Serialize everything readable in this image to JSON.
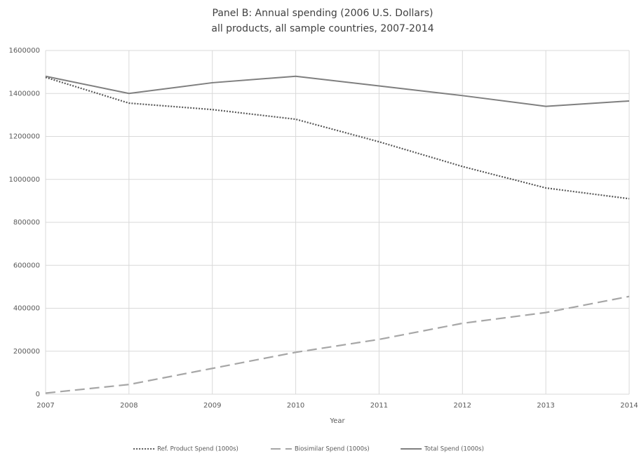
{
  "chart_data": {
    "type": "line",
    "title": "Panel B: Annual spending (2006 U.S. Dollars)",
    "subtitle": "all products, all sample countries, 2007-2014",
    "x_label": "Year",
    "x": [
      2007,
      2008,
      2009,
      2010,
      2011,
      2012,
      2013,
      2014
    ],
    "xlim": [
      2007,
      2014
    ],
    "xticks": [
      2007,
      2008,
      2009,
      2010,
      2011,
      2012,
      2013,
      2014
    ],
    "ylim": [
      0,
      1600000
    ],
    "yticks": [
      0,
      200000,
      400000,
      600000,
      800000,
      1000000,
      1200000,
      1400000,
      1600000
    ],
    "grid": true,
    "legend": "bottom",
    "series": [
      {
        "name": "Ref. Product Spend (1000s)",
        "color": "#595959",
        "dash": "dotted",
        "values": [
          1475000,
          1355000,
          1325000,
          1280000,
          1175000,
          1060000,
          960000,
          910000
        ]
      },
      {
        "name": "Biosimilar Spend (1000s)",
        "color": "#a6a6a6",
        "dash": "dashed",
        "values": [
          5000,
          45000,
          120000,
          195000,
          255000,
          330000,
          380000,
          455000
        ]
      },
      {
        "name": "Total Spend (1000s)",
        "color": "#7f7f7f",
        "dash": "solid",
        "values": [
          1480000,
          1400000,
          1450000,
          1480000,
          1435000,
          1390000,
          1340000,
          1365000
        ]
      }
    ]
  }
}
